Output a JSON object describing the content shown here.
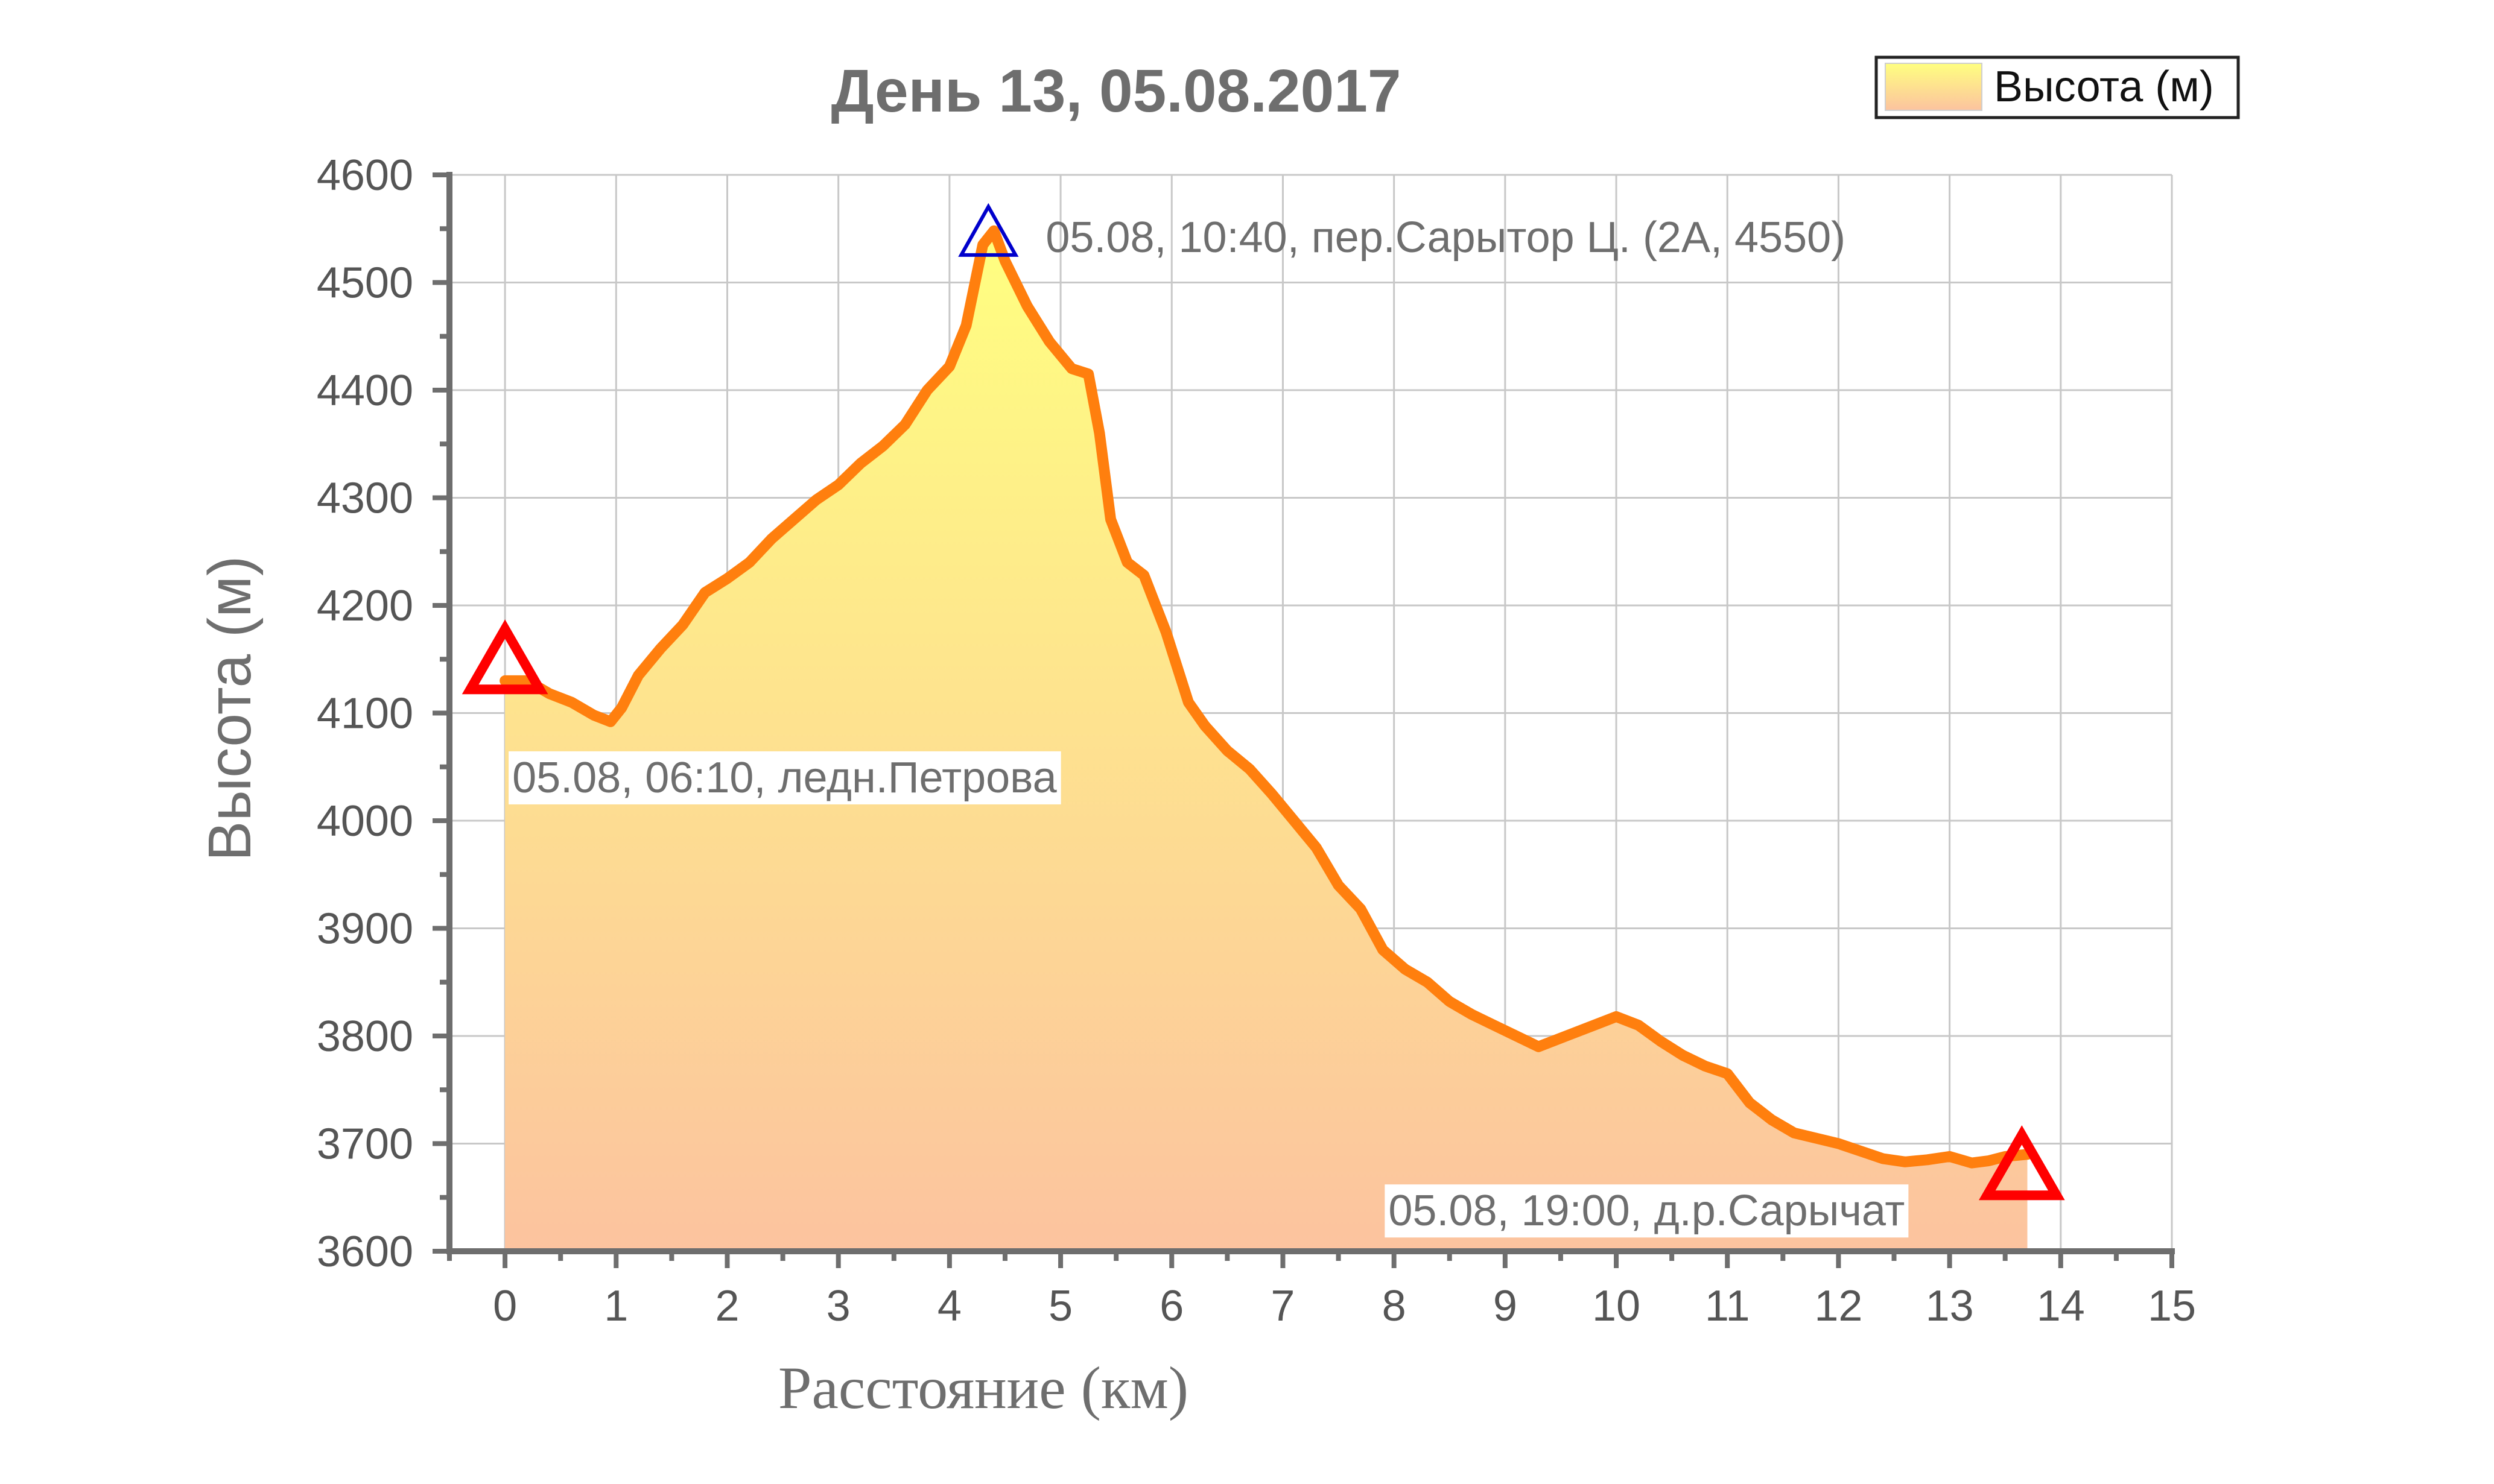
{
  "chart_data": {
    "type": "area",
    "title": "День 13, 05.08.2017",
    "xlabel": "Расстояние (км)",
    "ylabel": "Высота (м)",
    "xlim": [
      -0.5,
      15
    ],
    "ylim": [
      3600,
      4600
    ],
    "xticks": [
      0,
      1,
      2,
      3,
      4,
      5,
      6,
      7,
      8,
      9,
      10,
      11,
      12,
      13,
      14,
      15
    ],
    "yticks": [
      3600,
      3700,
      3800,
      3900,
      4000,
      4100,
      4200,
      4300,
      4400,
      4500,
      4600
    ],
    "grid": true,
    "legend": {
      "position": "top-right",
      "entries": [
        "Высота (м)"
      ]
    },
    "series": [
      {
        "name": "Высота (м)",
        "x": [
          0,
          0.2,
          0.4,
          0.6,
          0.8,
          0.95,
          1.05,
          1.2,
          1.4,
          1.6,
          1.8,
          2.0,
          2.2,
          2.4,
          2.6,
          2.8,
          3.0,
          3.2,
          3.4,
          3.6,
          3.8,
          4.0,
          4.15,
          4.3,
          4.4,
          4.5,
          4.7,
          4.9,
          5.1,
          5.25,
          5.35,
          5.45,
          5.6,
          5.75,
          5.95,
          6.15,
          6.3,
          6.5,
          6.7,
          6.9,
          7.1,
          7.3,
          7.5,
          7.7,
          7.9,
          8.1,
          8.3,
          8.5,
          8.7,
          8.9,
          9.1,
          9.3,
          9.55,
          9.8,
          10.0,
          10.2,
          10.4,
          10.6,
          10.8,
          11.0,
          11.2,
          11.4,
          11.6,
          11.8,
          12.0,
          12.2,
          12.4,
          12.6,
          12.8,
          13.0,
          13.2,
          13.35,
          13.5,
          13.7
        ],
        "y": [
          4130,
          4130,
          4118,
          4110,
          4098,
          4092,
          4105,
          4135,
          4160,
          4182,
          4212,
          4225,
          4240,
          4262,
          4280,
          4298,
          4312,
          4332,
          4348,
          4368,
          4400,
          4422,
          4460,
          4535,
          4548,
          4520,
          4478,
          4445,
          4420,
          4415,
          4360,
          4280,
          4240,
          4228,
          4175,
          4110,
          4088,
          4065,
          4048,
          4025,
          4000,
          3975,
          3940,
          3918,
          3880,
          3862,
          3850,
          3832,
          3820,
          3810,
          3800,
          3790,
          3800,
          3810,
          3818,
          3810,
          3795,
          3782,
          3772,
          3765,
          3738,
          3722,
          3710,
          3705,
          3700,
          3693,
          3686,
          3683,
          3685,
          3688,
          3682,
          3684,
          3688,
          3690
        ]
      }
    ],
    "markers": [
      {
        "x": 0,
        "y": 4150,
        "color": "#ff0000",
        "shape": "open-triangle"
      },
      {
        "x": 4.35,
        "y": 4548,
        "color": "#0000cc",
        "shape": "open-triangle"
      },
      {
        "x": 13.65,
        "y": 3680,
        "color": "#ff0000",
        "shape": "open-triangle"
      }
    ],
    "annotations": [
      {
        "text": "05.08, 10:40, пер.Сарытор Ц. (2А, 4550)",
        "x": 4.35,
        "y": 4548
      },
      {
        "text": "05.08, 06:10, ледн.Петрова",
        "x": 0,
        "y": 4130
      },
      {
        "text": "05.08, 19:00, д.р.Сарычат",
        "x": 13.65,
        "y": 3680
      }
    ],
    "colors": {
      "line": "#ff7f0e",
      "fill_top": "#ffff80",
      "fill_bottom": "#fcc39f",
      "axis": "#6e6e6e",
      "grid": "#c8c8c8"
    }
  }
}
